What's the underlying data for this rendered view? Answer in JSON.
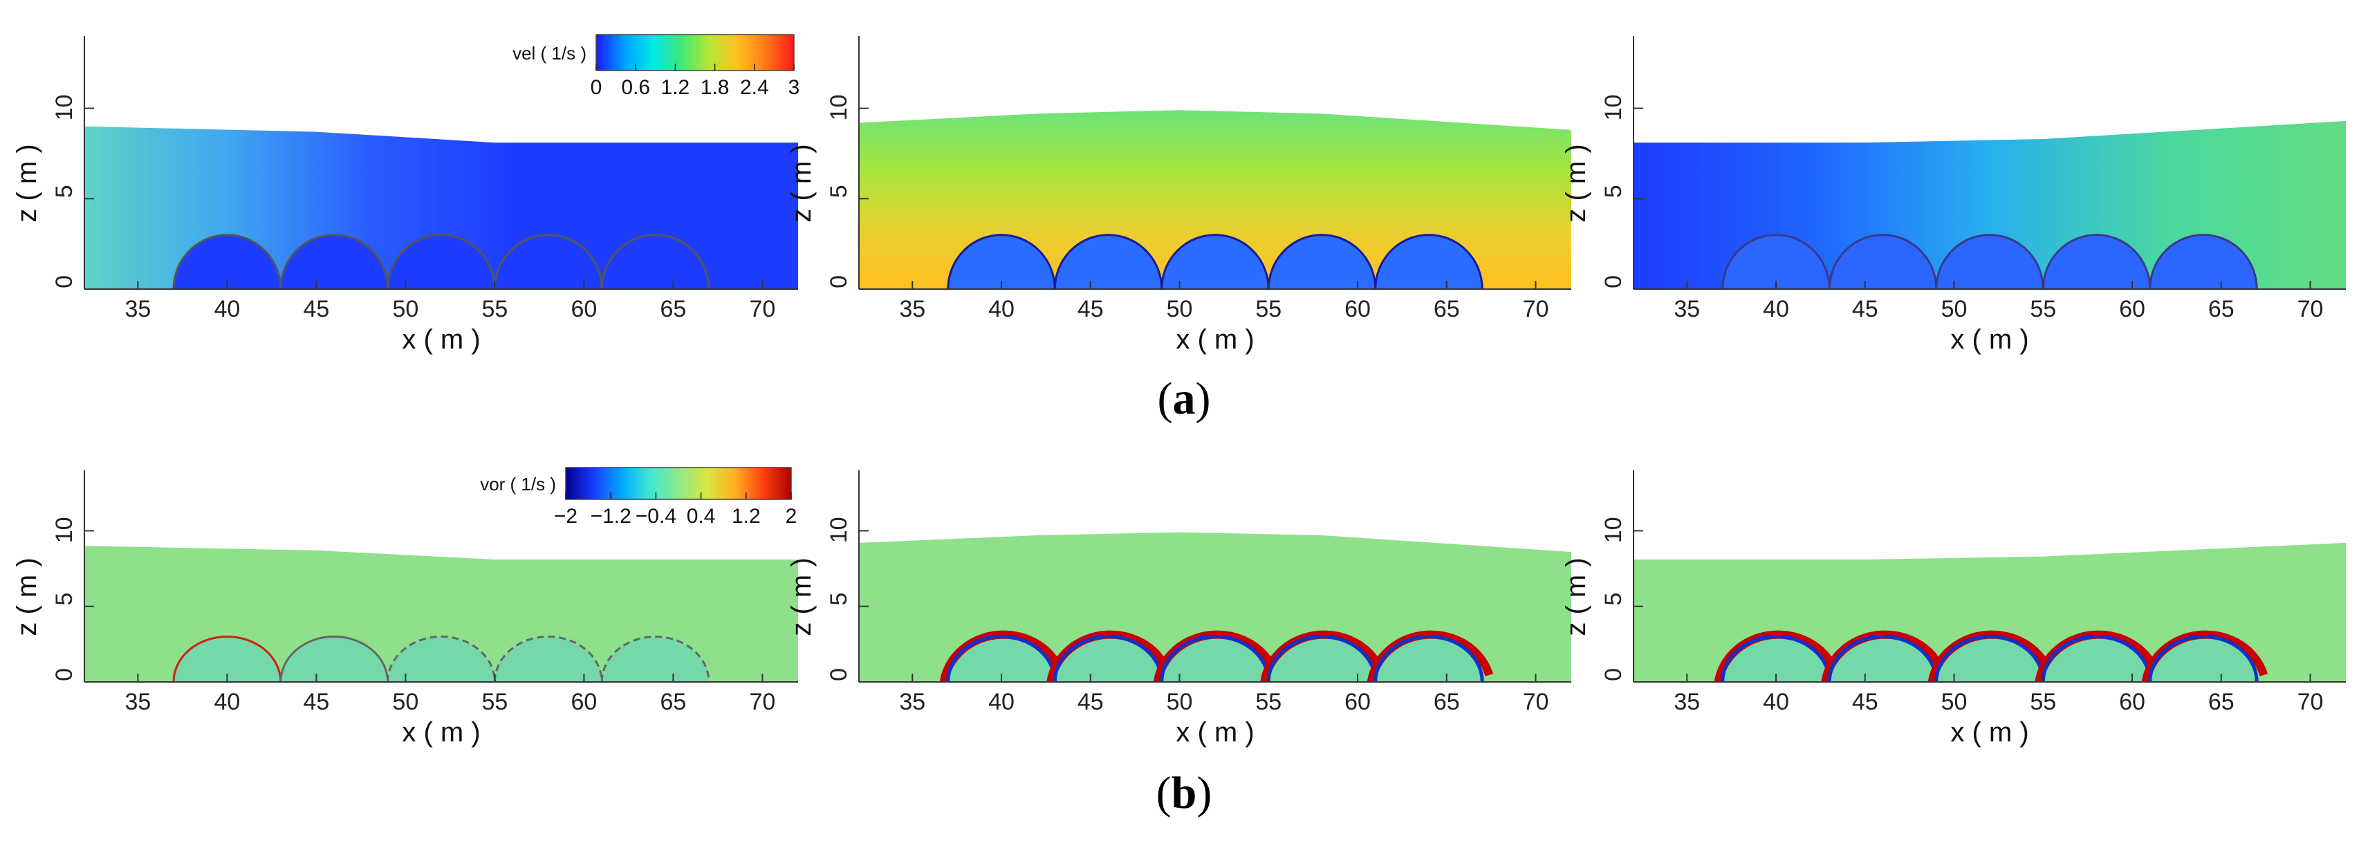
{
  "figure": {
    "row_labels": [
      {
        "open": "(",
        "letter": "a",
        "close": ")"
      },
      {
        "open": "(",
        "letter": "b",
        "close": ")"
      }
    ]
  },
  "chart_data": [
    {
      "type": "heatmap",
      "row": "a",
      "quantity": "velocity magnitude",
      "colorbar": {
        "title": "vel ( 1/s )",
        "range": [
          0,
          3
        ],
        "ticks": [
          0,
          0.6,
          1.2,
          1.8,
          2.4,
          3
        ],
        "tick_labels": [
          "0",
          "0.6",
          "1.2",
          "1.8",
          "2.4",
          "3"
        ],
        "colormap": [
          "#1a1aff",
          "#00a0ff",
          "#00e8e8",
          "#3ee87a",
          "#b4e832",
          "#ffc020",
          "#ff7a18",
          "#ff1818"
        ]
      },
      "panels": [
        {
          "xlabel": "x ( m )",
          "ylabel": "z ( m )",
          "xlim": [
            32,
            72
          ],
          "ylim": [
            0,
            14
          ],
          "xticks": [
            35,
            40,
            45,
            50,
            55,
            60,
            65,
            70
          ],
          "yticks": [
            0,
            5,
            10
          ],
          "free_surface": [
            [
              32,
              9.0
            ],
            [
              45,
              8.7
            ],
            [
              55,
              8.1
            ],
            [
              72,
              8.1
            ]
          ],
          "structures_center_x": [
            40,
            46,
            52,
            58,
            64
          ],
          "structure_radius": 3
        },
        {
          "xlabel": "x ( m )",
          "ylabel": "z ( m )",
          "xlim": [
            32,
            72
          ],
          "ylim": [
            0,
            14
          ],
          "xticks": [
            35,
            40,
            45,
            50,
            55,
            60,
            65,
            70
          ],
          "yticks": [
            0,
            5,
            10
          ],
          "free_surface": [
            [
              32,
              9.2
            ],
            [
              42,
              9.7
            ],
            [
              50,
              9.9
            ],
            [
              58,
              9.7
            ],
            [
              72,
              8.8
            ]
          ],
          "structures_center_x": [
            40,
            46,
            52,
            58,
            64
          ],
          "structure_radius": 3
        },
        {
          "xlabel": "x ( m )",
          "ylabel": "z ( m )",
          "xlim": [
            32,
            72
          ],
          "ylim": [
            0,
            14
          ],
          "xticks": [
            35,
            40,
            45,
            50,
            55,
            60,
            65,
            70
          ],
          "yticks": [
            0,
            5,
            10
          ],
          "free_surface": [
            [
              32,
              8.1
            ],
            [
              45,
              8.1
            ],
            [
              55,
              8.3
            ],
            [
              72,
              9.3
            ]
          ],
          "structures_center_x": [
            40,
            46,
            52,
            58,
            64
          ],
          "structure_radius": 3
        }
      ]
    },
    {
      "type": "heatmap",
      "row": "b",
      "quantity": "vorticity",
      "colorbar": {
        "title": "vor ( 1/s )",
        "range": [
          -2,
          2
        ],
        "ticks": [
          -2,
          -1.2,
          -0.4,
          0.4,
          1.2,
          2
        ],
        "tick_labels": [
          "−2",
          "−1.2",
          "−0.4",
          "0.4",
          "1.2",
          "2"
        ],
        "colormap": [
          "#00008c",
          "#1a3cff",
          "#00aaff",
          "#40e8d0",
          "#8ee88a",
          "#d8e840",
          "#ffb020",
          "#ff4010",
          "#b00000"
        ]
      },
      "panels": [
        {
          "xlabel": "x ( m )",
          "ylabel": "z ( m )",
          "xlim": [
            32,
            72
          ],
          "ylim": [
            0,
            14
          ],
          "xticks": [
            35,
            40,
            45,
            50,
            55,
            60,
            65,
            70
          ],
          "yticks": [
            0,
            5,
            10
          ],
          "free_surface": [
            [
              32,
              9.0
            ],
            [
              45,
              8.7
            ],
            [
              55,
              8.1
            ],
            [
              72,
              8.1
            ]
          ],
          "structures_center_x": [
            40,
            46,
            52,
            58,
            64
          ],
          "structure_radius": 3
        },
        {
          "xlabel": "x ( m )",
          "ylabel": "z ( m )",
          "xlim": [
            32,
            72
          ],
          "ylim": [
            0,
            14
          ],
          "xticks": [
            35,
            40,
            45,
            50,
            55,
            60,
            65,
            70
          ],
          "yticks": [
            0,
            5,
            10
          ],
          "free_surface": [
            [
              32,
              9.2
            ],
            [
              42,
              9.7
            ],
            [
              50,
              9.9
            ],
            [
              58,
              9.7
            ],
            [
              72,
              8.6
            ]
          ],
          "structures_center_x": [
            40,
            46,
            52,
            58,
            64
          ],
          "structure_radius": 3
        },
        {
          "xlabel": "x ( m )",
          "ylabel": "z ( m )",
          "xlim": [
            32,
            72
          ],
          "ylim": [
            0,
            14
          ],
          "xticks": [
            35,
            40,
            45,
            50,
            55,
            60,
            65,
            70
          ],
          "yticks": [
            0,
            5,
            10
          ],
          "free_surface": [
            [
              32,
              8.1
            ],
            [
              45,
              8.1
            ],
            [
              55,
              8.3
            ],
            [
              72,
              9.2
            ]
          ],
          "structures_center_x": [
            40,
            46,
            52,
            58,
            64
          ],
          "structure_radius": 3
        }
      ]
    }
  ]
}
